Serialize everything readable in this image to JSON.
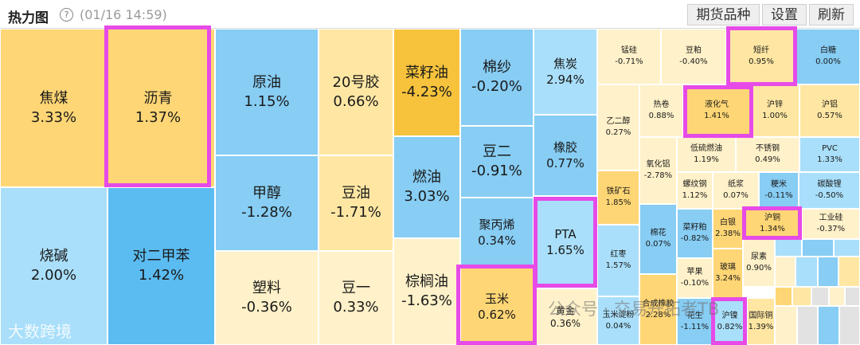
{
  "header": {
    "title": "热力图",
    "help_icon": "?",
    "timestamp": "(01/16 14:59)",
    "buttons": {
      "futures": "期货品种",
      "settings": "设置",
      "refresh": "刷新"
    }
  },
  "colors": {
    "orange": "#f7c33c",
    "amber": "#ffd675",
    "lightyellow": "#ffe7a3",
    "paleyellow": "#fff1c9",
    "lightblue": "#a9dffa",
    "blue": "#87cdf4",
    "deepblue": "#5bbcf2",
    "highlight": "#e64be8"
  },
  "tiles": [
    {
      "name": "焦煤",
      "pct": "3.33%"
    },
    {
      "name": "沥青",
      "pct": "1.37%"
    },
    {
      "name": "烧碱",
      "pct": "2.00%"
    },
    {
      "name": "对二甲苯",
      "pct": "1.42%"
    },
    {
      "name": "原油",
      "pct": "1.15%"
    },
    {
      "name": "20号胶",
      "pct": "0.66%"
    },
    {
      "name": "甲醇",
      "pct": "-1.28%"
    },
    {
      "name": "豆油",
      "pct": "-1.71%"
    },
    {
      "name": "塑料",
      "pct": "-0.36%"
    },
    {
      "name": "豆一",
      "pct": "0.33%"
    },
    {
      "name": "菜籽油",
      "pct": "-4.23%"
    },
    {
      "name": "燃油",
      "pct": "3.03%"
    },
    {
      "name": "棕榈油",
      "pct": "-1.63%"
    },
    {
      "name": "棉纱",
      "pct": "-0.20%"
    },
    {
      "name": "豆二",
      "pct": "-0.91%"
    },
    {
      "name": "聚丙烯",
      "pct": "0.34%"
    },
    {
      "name": "玉米",
      "pct": "0.62%"
    },
    {
      "name": "焦炭",
      "pct": "2.94%"
    },
    {
      "name": "橡胶",
      "pct": "0.77%"
    },
    {
      "name": "PTA",
      "pct": "1.65%"
    },
    {
      "name": "黄金",
      "pct": "0.36%"
    },
    {
      "name": "锰硅",
      "pct": "-0.71%"
    },
    {
      "name": "豆粕",
      "pct": "-0.40%"
    },
    {
      "name": "短纤",
      "pct": "0.95%"
    },
    {
      "name": "白糖",
      "pct": "0.00%"
    },
    {
      "name": "乙二醇",
      "pct": "0.27%"
    },
    {
      "name": "热卷",
      "pct": "0.88%"
    },
    {
      "name": "液化气",
      "pct": "1.41%"
    },
    {
      "name": "沪锌",
      "pct": "1.00%"
    },
    {
      "name": "沪铝",
      "pct": "0.57%"
    },
    {
      "name": "氧化铝",
      "pct": "-2.78%"
    },
    {
      "name": "低硫燃油",
      "pct": "1.19%"
    },
    {
      "name": "不锈钢",
      "pct": "0.49%"
    },
    {
      "name": "PVC",
      "pct": "1.33%"
    },
    {
      "name": "铁矿石",
      "pct": "1.85%"
    },
    {
      "name": "螺纹钢",
      "pct": "1.12%"
    },
    {
      "name": "纸浆",
      "pct": "0.07%"
    },
    {
      "name": "粳米",
      "pct": "-0.11%"
    },
    {
      "name": "碳酸锂",
      "pct": "-0.50%"
    },
    {
      "name": "白银",
      "pct": "2.38%"
    },
    {
      "name": "沪铜",
      "pct": "1.34%"
    },
    {
      "name": "工业硅",
      "pct": "-0.37%"
    },
    {
      "name": "红枣",
      "pct": "1.57%"
    },
    {
      "name": "棉花",
      "pct": "0.07%"
    },
    {
      "name": "菜籽粕",
      "pct": "-0.82%"
    },
    {
      "name": "尿素",
      "pct": "0.90%"
    },
    {
      "name": "苹果",
      "pct": "-0.10%"
    },
    {
      "name": "玻璃",
      "pct": "3.24%"
    },
    {
      "name": "玉米淀粉",
      "pct": "0.04%"
    },
    {
      "name": "合成橡胶",
      "pct": "2.28%"
    },
    {
      "name": "花生",
      "pct": "-1.11%"
    },
    {
      "name": "沪镍",
      "pct": "0.82%"
    },
    {
      "name": "国际铜",
      "pct": "1.39%"
    }
  ],
  "watermarks": {
    "left": "大数跨境",
    "right": "公众号 · 交易开拓者TB"
  }
}
